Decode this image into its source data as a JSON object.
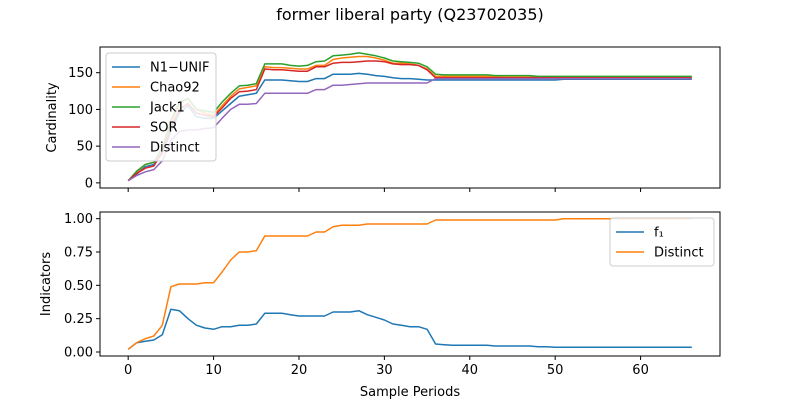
{
  "figure_title": "former liberal party (Q23702035)",
  "chart_data": [
    {
      "type": "line",
      "ylabel": "Cardinality",
      "xlabel": "",
      "xlim": [
        -3.3,
        69.3
      ],
      "ylim": [
        -7,
        185
      ],
      "xticks": [
        0,
        10,
        20,
        30,
        40,
        50,
        60
      ],
      "show_xtick_labels": false,
      "yticks": [
        0,
        50,
        100,
        150
      ],
      "legend_placement": "upper-left",
      "grid": false,
      "x": [
        0,
        1,
        2,
        3,
        4,
        5,
        6,
        7,
        8,
        9,
        10,
        11,
        12,
        13,
        14,
        15,
        16,
        17,
        18,
        19,
        20,
        21,
        22,
        23,
        24,
        25,
        26,
        27,
        28,
        29,
        30,
        31,
        32,
        33,
        34,
        35,
        36,
        37,
        38,
        39,
        40,
        41,
        42,
        43,
        44,
        45,
        46,
        47,
        48,
        49,
        50,
        51,
        52,
        53,
        54,
        55,
        56,
        57,
        58,
        59,
        60,
        61,
        62,
        63,
        64,
        65,
        66
      ],
      "series": [
        {
          "name": "N1−UNIF",
          "color": "#1f77b4",
          "values": [
            3,
            12,
            22,
            25,
            40,
            70,
            95,
            105,
            90,
            88,
            88,
            98,
            108,
            118,
            120,
            122,
            140,
            140,
            140,
            139,
            138,
            138,
            142,
            142,
            148,
            148,
            148,
            149,
            148,
            146,
            145,
            143,
            142,
            142,
            141,
            140,
            140,
            140,
            140,
            140,
            140,
            140,
            140,
            140,
            140,
            140,
            140,
            140,
            140,
            140,
            140,
            141,
            141,
            141,
            141,
            141,
            141,
            141,
            141,
            141,
            141,
            141,
            141,
            141,
            141,
            141,
            141
          ]
        },
        {
          "name": "Chao92",
          "color": "#ff7f0e",
          "values": [
            3,
            15,
            25,
            28,
            45,
            80,
            108,
            115,
            100,
            95,
            92,
            105,
            118,
            128,
            130,
            132,
            158,
            157,
            157,
            156,
            155,
            155,
            160,
            160,
            168,
            170,
            171,
            172,
            172,
            170,
            167,
            163,
            163,
            162,
            160,
            155,
            145,
            145,
            145,
            145,
            145,
            145,
            145,
            145,
            144,
            144,
            144,
            144,
            144,
            144,
            143,
            144,
            144,
            144,
            144,
            144,
            144,
            144,
            144,
            144,
            144,
            144,
            144,
            144,
            144,
            144,
            144
          ]
        },
        {
          "name": "Jack1",
          "color": "#2ca02c",
          "values": [
            3,
            16,
            25,
            28,
            48,
            85,
            110,
            115,
            100,
            98,
            96,
            110,
            122,
            132,
            133,
            135,
            162,
            162,
            162,
            160,
            159,
            160,
            165,
            166,
            173,
            174,
            175,
            177,
            175,
            173,
            170,
            166,
            165,
            164,
            163,
            158,
            148,
            147,
            147,
            147,
            147,
            147,
            147,
            146,
            146,
            146,
            146,
            146,
            145,
            145,
            145,
            145,
            145,
            145,
            145,
            145,
            145,
            145,
            145,
            145,
            145,
            145,
            145,
            145,
            145,
            145,
            145
          ]
        },
        {
          "name": "SOR",
          "color": "#d62728",
          "values": [
            3,
            13,
            20,
            23,
            42,
            75,
            100,
            108,
            95,
            92,
            90,
            102,
            115,
            124,
            125,
            127,
            155,
            154,
            154,
            153,
            152,
            152,
            158,
            158,
            163,
            164,
            164,
            165,
            166,
            166,
            165,
            162,
            161,
            161,
            160,
            154,
            143,
            143,
            143,
            143,
            143,
            143,
            143,
            143,
            143,
            143,
            143,
            143,
            143,
            143,
            143,
            143,
            143,
            143,
            143,
            143,
            143,
            143,
            143,
            143,
            143,
            143,
            143,
            143,
            143,
            143,
            143
          ]
        },
        {
          "name": "Distinct",
          "color": "#9467bd",
          "values": [
            3,
            10,
            15,
            18,
            30,
            58,
            70,
            72,
            72,
            74,
            75,
            88,
            100,
            107,
            107,
            108,
            122,
            122,
            122,
            122,
            122,
            122,
            127,
            127,
            133,
            133,
            134,
            135,
            136,
            136,
            136,
            136,
            136,
            136,
            136,
            136,
            142,
            142,
            142,
            142,
            142,
            142,
            142,
            142,
            142,
            142,
            142,
            142,
            142,
            142,
            142,
            142,
            142,
            142,
            142,
            142,
            142,
            142,
            142,
            142,
            142,
            142,
            142,
            142,
            142,
            142,
            142
          ]
        }
      ]
    },
    {
      "type": "line",
      "ylabel": "Indicators",
      "xlabel": "Sample Periods",
      "xlim": [
        -3.3,
        69.3
      ],
      "ylim": [
        -0.03,
        1.05
      ],
      "xticks": [
        0,
        10,
        20,
        30,
        40,
        50,
        60
      ],
      "show_xtick_labels": true,
      "yticks": [
        0.0,
        0.25,
        0.5,
        0.75,
        1.0
      ],
      "ytick_labels": [
        "0.00",
        "0.25",
        "0.50",
        "0.75",
        "1.00"
      ],
      "legend_placement": "upper-right",
      "grid": false,
      "x": [
        0,
        1,
        2,
        3,
        4,
        5,
        6,
        7,
        8,
        9,
        10,
        11,
        12,
        13,
        14,
        15,
        16,
        17,
        18,
        19,
        20,
        21,
        22,
        23,
        24,
        25,
        26,
        27,
        28,
        29,
        30,
        31,
        32,
        33,
        34,
        35,
        36,
        37,
        38,
        39,
        40,
        41,
        42,
        43,
        44,
        45,
        46,
        47,
        48,
        49,
        50,
        51,
        52,
        53,
        54,
        55,
        56,
        57,
        58,
        59,
        60,
        61,
        62,
        63,
        64,
        65,
        66
      ],
      "series": [
        {
          "name": "f₁",
          "color": "#1f77b4",
          "values": [
            0.02,
            0.07,
            0.08,
            0.09,
            0.13,
            0.32,
            0.31,
            0.25,
            0.2,
            0.18,
            0.17,
            0.19,
            0.19,
            0.2,
            0.2,
            0.21,
            0.29,
            0.29,
            0.29,
            0.28,
            0.27,
            0.27,
            0.27,
            0.27,
            0.3,
            0.3,
            0.3,
            0.31,
            0.28,
            0.26,
            0.24,
            0.21,
            0.2,
            0.19,
            0.19,
            0.17,
            0.06,
            0.055,
            0.05,
            0.05,
            0.05,
            0.05,
            0.05,
            0.045,
            0.045,
            0.045,
            0.045,
            0.045,
            0.04,
            0.04,
            0.035,
            0.035,
            0.035,
            0.035,
            0.035,
            0.035,
            0.035,
            0.035,
            0.035,
            0.035,
            0.035,
            0.035,
            0.035,
            0.035,
            0.035,
            0.035,
            0.035
          ]
        },
        {
          "name": "Distinct",
          "color": "#ff7f0e",
          "values": [
            0.02,
            0.07,
            0.1,
            0.12,
            0.2,
            0.49,
            0.51,
            0.51,
            0.51,
            0.52,
            0.52,
            0.6,
            0.69,
            0.75,
            0.75,
            0.76,
            0.87,
            0.87,
            0.87,
            0.87,
            0.87,
            0.87,
            0.9,
            0.9,
            0.94,
            0.95,
            0.95,
            0.95,
            0.96,
            0.96,
            0.96,
            0.96,
            0.96,
            0.96,
            0.96,
            0.96,
            0.99,
            0.99,
            0.99,
            0.99,
            0.99,
            0.99,
            0.99,
            0.99,
            0.99,
            0.99,
            0.99,
            0.99,
            0.99,
            0.99,
            0.99,
            1.0,
            1.0,
            1.0,
            1.0,
            1.0,
            1.0,
            1.0,
            1.0,
            1.0,
            1.0,
            1.0,
            1.0,
            1.0,
            1.0,
            1.0,
            1.0
          ]
        }
      ]
    }
  ]
}
